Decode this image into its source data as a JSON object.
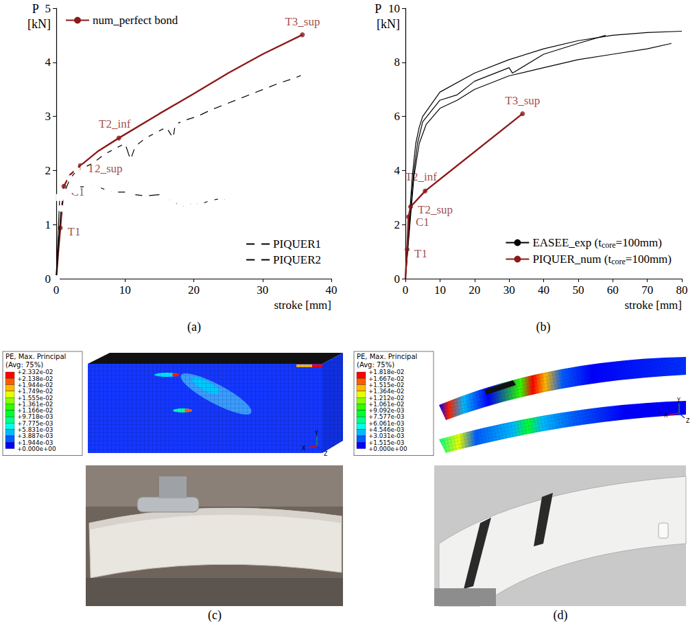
{
  "chart_data": [
    {
      "type": "line",
      "xlabel": "stroke [mm]",
      "ylabel": "P [kN]",
      "xlim": [
        0,
        40
      ],
      "xticks": [
        0,
        10,
        20,
        30,
        40
      ],
      "ylim": [
        0,
        5
      ],
      "yticks": [
        0,
        1,
        2,
        3,
        4,
        5
      ],
      "grid": false,
      "legend": "lower right",
      "series": [
        {
          "name": "num_perfect bond",
          "color": "#8b1a1a",
          "marker": "none",
          "line_style": "solid",
          "legend": "upper left",
          "x": [
            0,
            0.3,
            0.6,
            0.9,
            1.1,
            2,
            3.5,
            6,
            9.1,
            15,
            20,
            25,
            30,
            35.8
          ],
          "values": [
            0,
            0.5,
            0.94,
            1.4,
            1.71,
            1.92,
            2.09,
            2.35,
            2.6,
            3.05,
            3.42,
            3.8,
            4.15,
            4.51
          ]
        },
        {
          "name": "PIQUER1",
          "color": "#000000",
          "marker": "square",
          "line_style": "solid",
          "x": [
            0,
            0.5,
            1,
            1.7,
            2.5,
            3,
            4.5,
            5.5,
            6,
            7.5,
            8.5,
            10.5,
            11,
            13,
            15.5,
            16,
            17,
            18,
            19,
            20,
            21,
            22.5,
            24,
            25
          ],
          "values": [
            0,
            1.5,
            1.52,
            1.58,
            1.65,
            1.7,
            1.7,
            1.72,
            1.7,
            1.63,
            1.6,
            1.6,
            1.56,
            1.53,
            1.56,
            1.46,
            1.45,
            1.33,
            1.35,
            1.4,
            1.38,
            1.45,
            1.48,
            1.45
          ]
        },
        {
          "name": "PIQUER2",
          "color": "#000000",
          "marker": "circle",
          "line_style": "solid",
          "x": [
            0,
            0.7,
            1.2,
            2,
            3,
            4,
            5.5,
            7,
            8.5,
            10,
            10.8,
            11.5,
            13,
            14.5,
            16,
            17,
            17.3,
            18.5,
            20.5,
            22.5,
            24.5,
            26.5,
            28.5,
            30.5,
            32.5,
            34.5,
            36,
            36.7
          ],
          "values": [
            0,
            1.3,
            1.6,
            1.85,
            2.0,
            2.05,
            2.15,
            2.3,
            2.4,
            2.5,
            2.2,
            2.45,
            2.6,
            2.7,
            2.8,
            2.6,
            2.85,
            2.92,
            3.0,
            3.12,
            3.22,
            3.32,
            3.42,
            3.52,
            3.62,
            3.7,
            3.78,
            3.76
          ]
        }
      ],
      "annotations": [
        {
          "label": "T1",
          "x": 0.6,
          "y": 0.94,
          "color": "#8b1a1a"
        },
        {
          "label": "C1",
          "x": 1.1,
          "y": 1.71,
          "color": "#8b1a1a"
        },
        {
          "label": "T2_sup",
          "x": 3.5,
          "y": 2.09,
          "color": "#8b1a1a"
        },
        {
          "label": "T2_inf",
          "x": 9.1,
          "y": 2.6,
          "color": "#8b1a1a"
        },
        {
          "label": "T3_sup",
          "x": 35.8,
          "y": 4.51,
          "color": "#8b1a1a"
        }
      ]
    },
    {
      "type": "line",
      "xlabel": "stroke [mm]",
      "ylabel": "P [kN]",
      "xlim": [
        0,
        80
      ],
      "xticks": [
        0,
        10,
        20,
        30,
        40,
        50,
        60,
        70,
        80
      ],
      "ylim": [
        0,
        10
      ],
      "yticks": [
        0,
        2,
        4,
        6,
        8,
        10
      ],
      "grid": false,
      "legend": "lower right",
      "series": [
        {
          "name": "EASEE_exp (tcore=100mm)",
          "color": "#000000",
          "marker": "none",
          "line_style": "solid",
          "x": [
            0,
            1,
            2,
            3,
            4,
            5,
            10,
            20,
            30,
            40,
            50,
            60,
            70,
            80
          ],
          "values": [
            0,
            2,
            3.8,
            5,
            5.6,
            6,
            6.9,
            7.6,
            8.1,
            8.5,
            8.8,
            9.0,
            9.1,
            9.15
          ]
        },
        {
          "name": "EASEE_exp (tcore=100mm)",
          "color": "#000000",
          "marker": "none",
          "line_style": "solid",
          "x": [
            0,
            1.2,
            2.3,
            3.5,
            5,
            10,
            15,
            20,
            30,
            31,
            40,
            50,
            58
          ],
          "values": [
            0,
            2,
            3.8,
            5,
            5.8,
            6.6,
            6.8,
            7.3,
            7.8,
            7.6,
            8.3,
            8.7,
            9.0
          ]
        },
        {
          "name": "EASEE_exp (tcore=100mm)",
          "color": "#000000",
          "marker": "none",
          "line_style": "solid",
          "x": [
            0,
            1.3,
            2.5,
            4,
            6,
            10,
            15,
            20,
            30,
            40,
            50,
            60,
            70,
            77
          ],
          "values": [
            0,
            2,
            3.8,
            5,
            5.7,
            6.3,
            6.6,
            7.0,
            7.5,
            7.8,
            8.1,
            8.3,
            8.5,
            8.7
          ]
        },
        {
          "name": "PIQUER_num (tcore=100mm)",
          "color": "#8b1a1a",
          "marker": "none",
          "line_style": "solid",
          "x": [
            0,
            0.5,
            0.9,
            1.5,
            5.7,
            33.9
          ],
          "values": [
            0,
            1.08,
            2.29,
            2.66,
            3.24,
            6.1
          ]
        }
      ],
      "annotations": [
        {
          "label": "T1",
          "x": 0.5,
          "y": 1.08,
          "color": "#8b1a1a"
        },
        {
          "label": "C1",
          "x": 0.9,
          "y": 2.29,
          "color": "#8b1a1a"
        },
        {
          "label": "T2_sup",
          "x": 1.5,
          "y": 2.66,
          "color": "#8b1a1a"
        },
        {
          "label": "T2_inf",
          "x": 5.7,
          "y": 3.24,
          "color": "#8b1a1a"
        },
        {
          "label": "T3_sup",
          "x": 33.9,
          "y": 6.1,
          "color": "#8b1a1a"
        }
      ]
    }
  ],
  "figure": {
    "panel_labels": [
      "(a)",
      "(b)",
      "(c)",
      "(d)"
    ],
    "contours": [
      {
        "title": "PE, Max. Principal",
        "subtitle": "(Avg: 75%)",
        "levels": [
          "+2.332e-02",
          "+2.138e-02",
          "+1.944e-02",
          "+1.749e-02",
          "+1.555e-02",
          "+1.361e-02",
          "+1.166e-02",
          "+9.718e-03",
          "+7.775e-03",
          "+5.831e-03",
          "+3.887e-03",
          "+1.944e-03",
          "+0.000e+00"
        ],
        "triad": [
          "Y",
          "X",
          "Z"
        ]
      },
      {
        "title": "PE, Max. Principal",
        "subtitle": "(Avg: 75%)",
        "levels": [
          "+1.818e-02",
          "+1.667e-02",
          "+1.515e-02",
          "+1.364e-02",
          "+1.212e-02",
          "+1.061e-02",
          "+9.092e-03",
          "+7.577e-03",
          "+6.061e-03",
          "+4.546e-03",
          "+3.031e-03",
          "+1.515e-03",
          "+0.000e+00"
        ],
        "triad": [
          "Y",
          "X",
          "Z"
        ]
      }
    ]
  }
}
